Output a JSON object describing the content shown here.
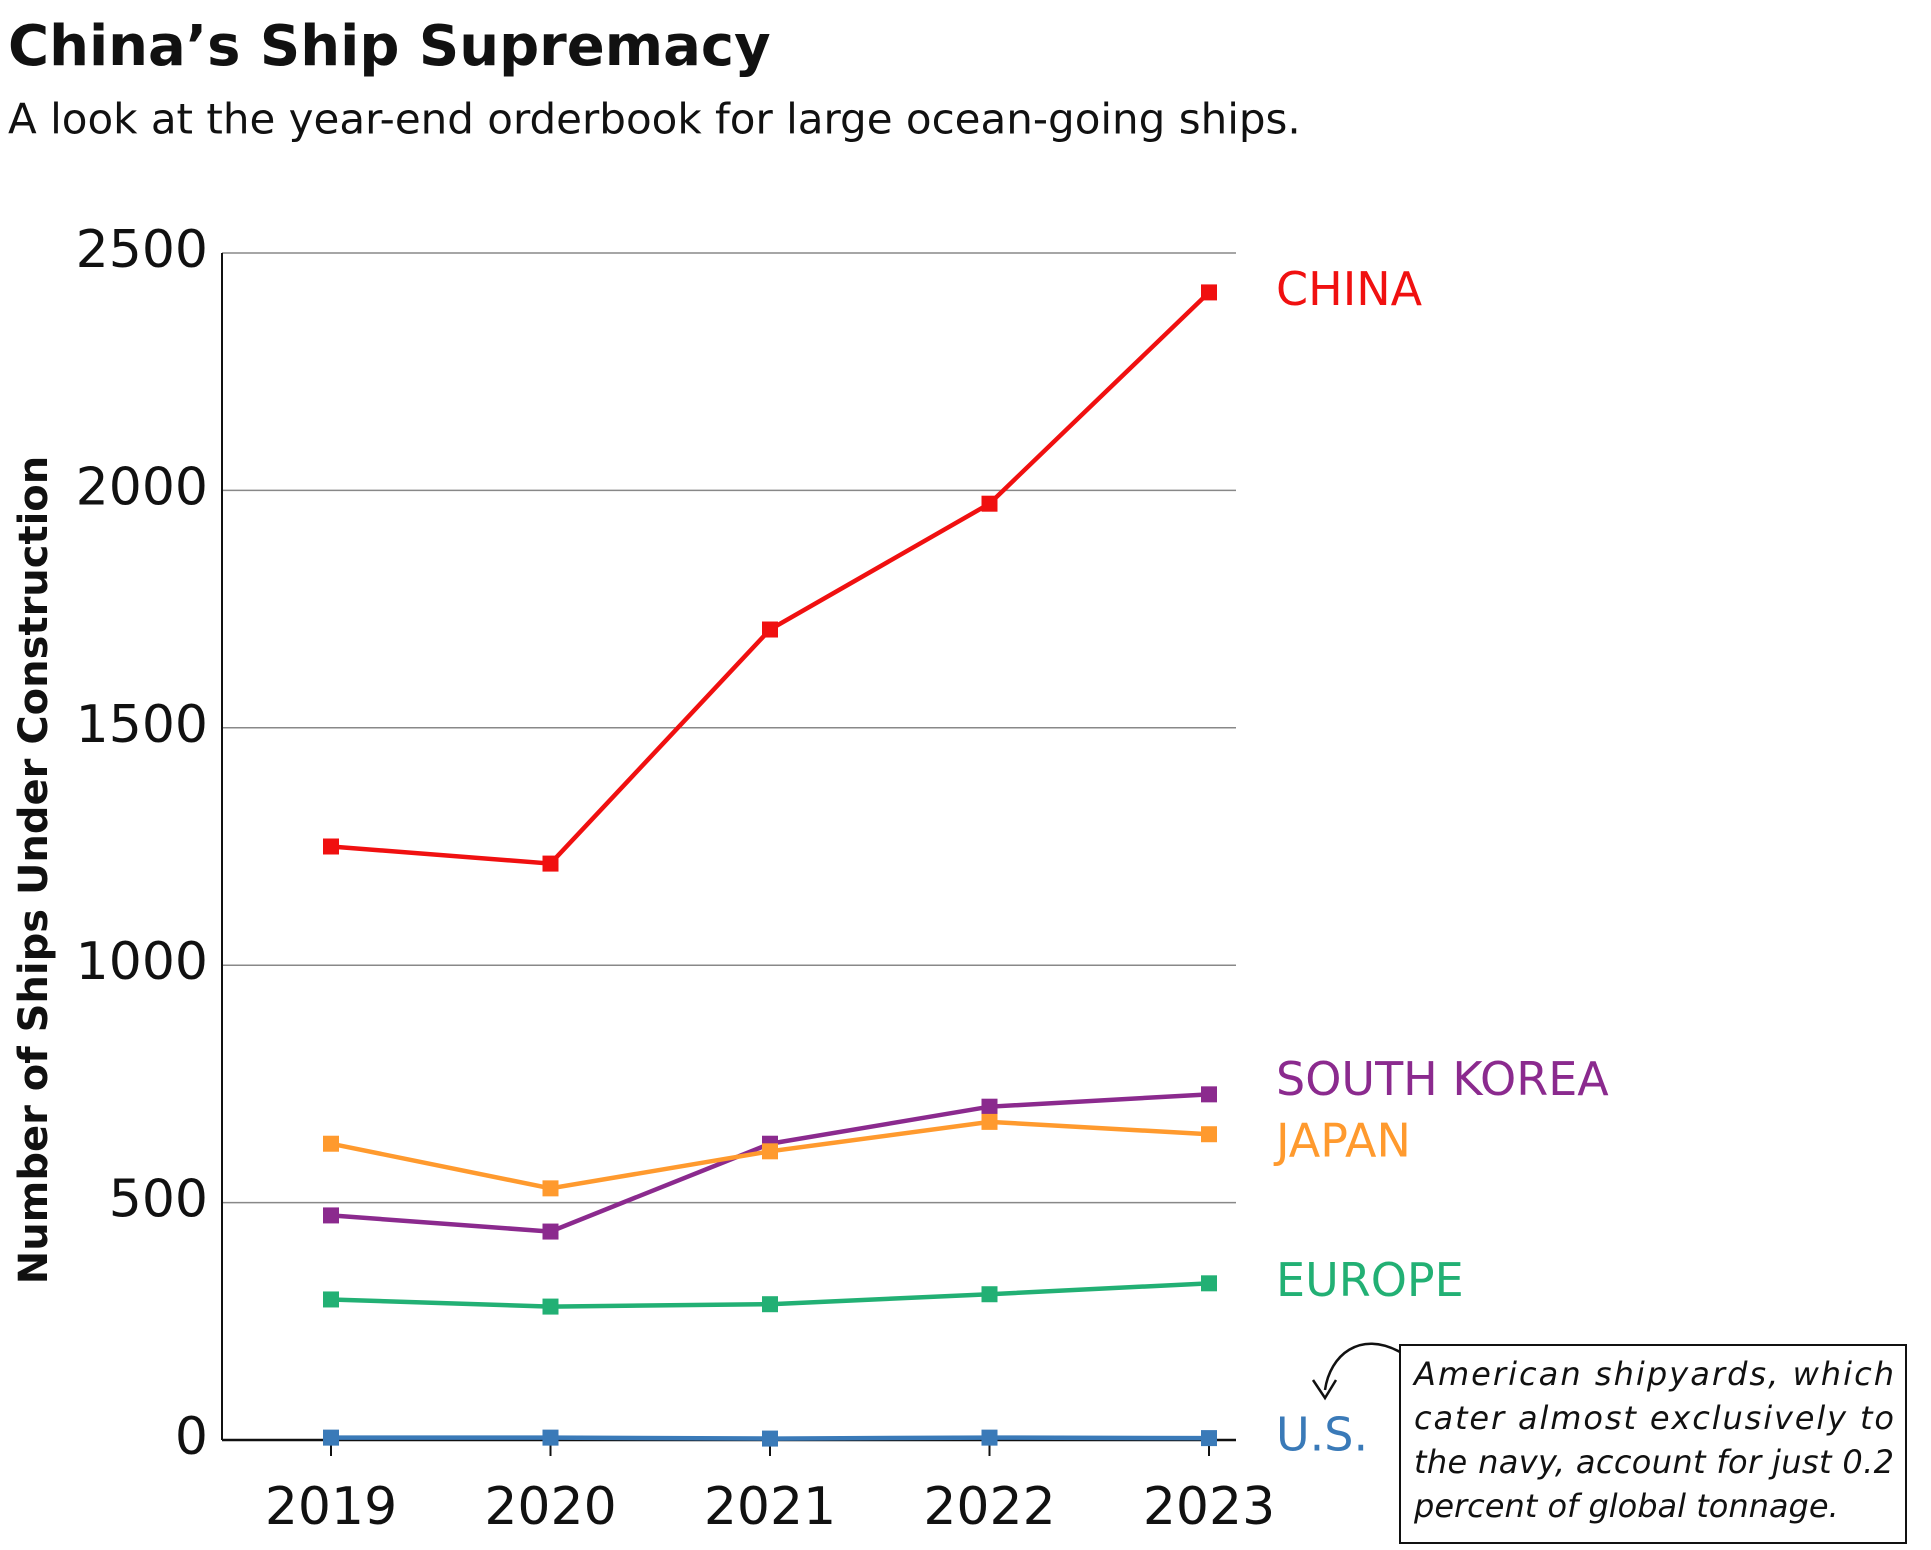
{
  "chart_data": {
    "type": "line",
    "title": "China’s Ship Supremacy",
    "subtitle": "A look at the year-end orderbook for large ocean-going ships.",
    "y_label": "Number of Ships Under Construction",
    "categories": [
      "2019",
      "2020",
      "2021",
      "2022",
      "2023"
    ],
    "series": [
      {
        "name": "CHINA",
        "color": "#f01010",
        "values": [
          1250,
          1214,
          1707,
          1972,
          2417
        ]
      },
      {
        "name": "SOUTH KOREA",
        "color": "#8b2a8e",
        "values": [
          473,
          439,
          624,
          702,
          728
        ]
      },
      {
        "name": "JAPAN",
        "color": "#ff9a2e",
        "values": [
          624,
          530,
          608,
          670,
          644
        ]
      },
      {
        "name": "EUROPE",
        "color": "#22b074",
        "values": [
          296,
          281,
          286,
          307,
          330
        ]
      },
      {
        "name": "U.S.",
        "color": "#3a7ab8",
        "values": [
          5,
          5,
          3,
          5,
          4
        ]
      }
    ],
    "ylim": [
      0,
      2500
    ],
    "yticks": [
      0,
      500,
      1000,
      1500,
      2000,
      2500
    ],
    "grid": true,
    "annotation": [
      "American shipyards, which",
      "cater almost exclusively to",
      "the navy, account for just 0.2",
      "percent of global tonnage."
    ]
  }
}
